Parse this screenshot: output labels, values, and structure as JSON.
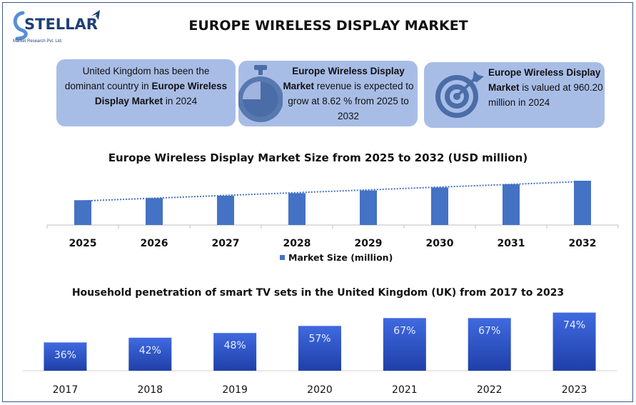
{
  "brand": {
    "name": "STELLAR",
    "sub": "Market Research Pvt. Ltd."
  },
  "title": "EUROPE WIRELESS DISPLAY MARKET",
  "cards": [
    {
      "segments": [
        {
          "text": "United Kingdom has been the dominant country in ",
          "bold": false
        },
        {
          "text": "Europe Wireless Display Market",
          "bold": true
        },
        {
          "text": " in 2024",
          "bold": false
        }
      ],
      "icon": "none"
    },
    {
      "segments": [
        {
          "text": "Europe Wireless Display Market",
          "bold": true
        },
        {
          "text": " revenue is expected to grow at 8.62 % from 2025 to 2032",
          "bold": false
        }
      ],
      "icon": "stopwatch-icon"
    },
    {
      "segments": [
        {
          "text": "Europe Wireless Display Market",
          "bold": true
        },
        {
          "text": " is valued at 960.20 million in 2024",
          "bold": false
        }
      ],
      "icon": "target-icon"
    }
  ],
  "colors": {
    "card_bg": "#a8bde6",
    "bar": "#4472c4",
    "bar_dark": "#2b4fb0",
    "bar_light": "#3f6ae0",
    "icon": "#4a6da8"
  },
  "chart_data": [
    {
      "type": "bar",
      "title": "Europe Wireless Display Market Size from 2025 to 2032 (USD million)",
      "categories": [
        "2025",
        "2026",
        "2027",
        "2028",
        "2029",
        "2030",
        "2031",
        "2032"
      ],
      "series": [
        {
          "name": "Market Size (million)",
          "values": [
            1043,
            1133,
            1231,
            1337,
            1452,
            1577,
            1713,
            1861
          ]
        }
      ],
      "trendline": "linear-dotted",
      "legend": "bottom",
      "ylim": [
        0,
        3000
      ],
      "grid": false
    },
    {
      "type": "bar",
      "title": "Household penetration of smart TV sets in the United Kingdom (UK) from 2017 to 2023",
      "categories": [
        "2017",
        "2018",
        "2019",
        "2020",
        "2021",
        "2022",
        "2023"
      ],
      "values": [
        36,
        42,
        48,
        57,
        67,
        67,
        74
      ],
      "labels": [
        "36%",
        "42%",
        "48%",
        "57%",
        "67%",
        "67%",
        "74%"
      ],
      "ylim": [
        0,
        80
      ],
      "grid": false
    }
  ]
}
